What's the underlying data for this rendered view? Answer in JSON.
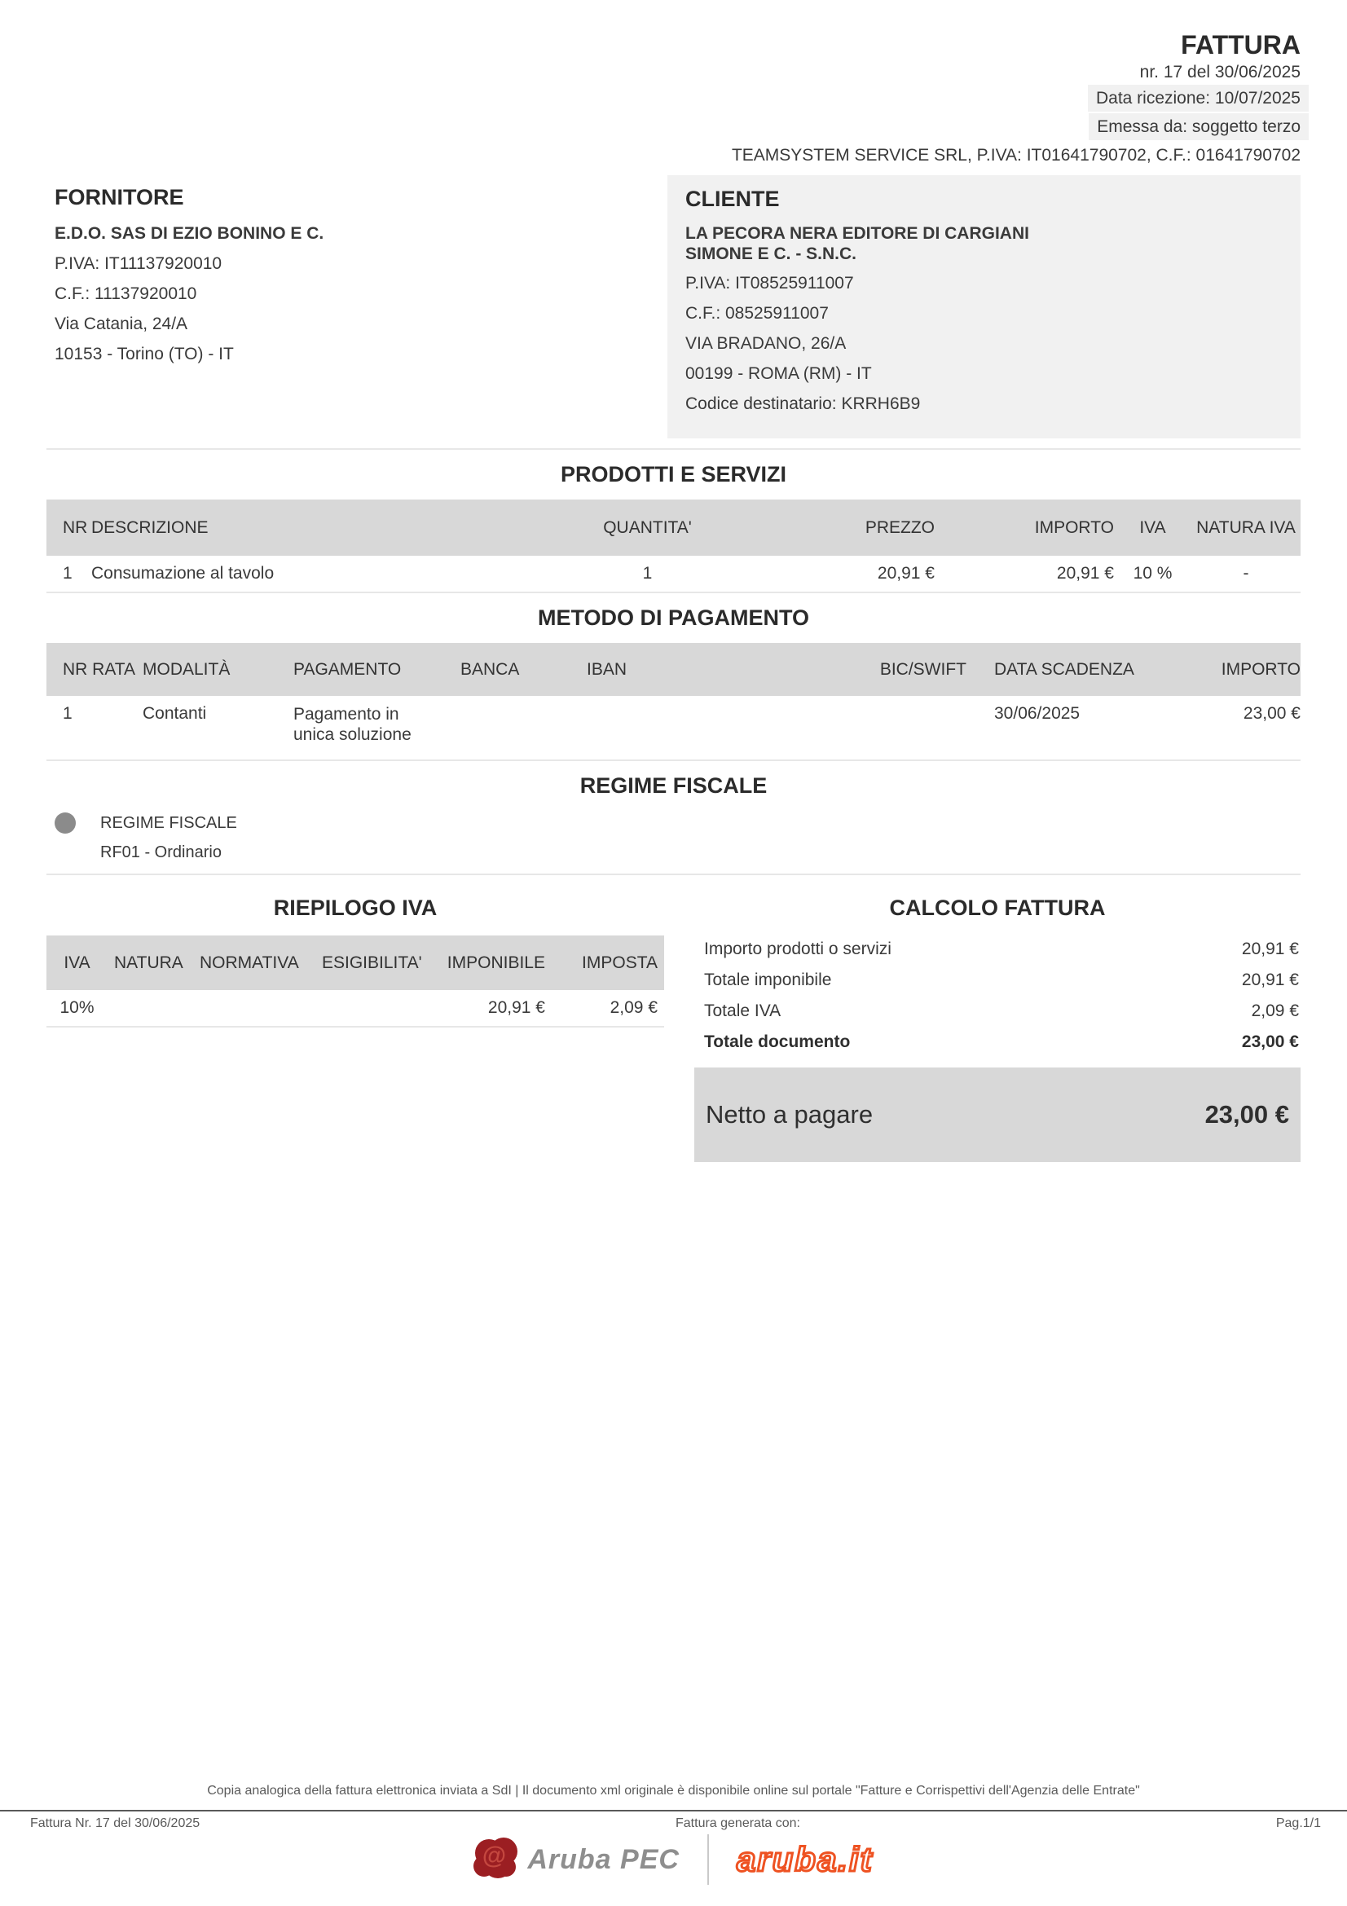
{
  "doc": {
    "title": "FATTURA",
    "number_line": "nr. 17 del 30/06/2025",
    "reception_line": "Data ricezione: 10/07/2025",
    "issued_line": "Emessa da: soggetto terzo",
    "intermediary_line": "TEAMSYSTEM SERVICE SRL, P.IVA: IT01641790702, C.F.: 01641790702"
  },
  "fornitore": {
    "heading": "FORNITORE",
    "name": "E.D.O. SAS DI EZIO BONINO E C.",
    "piva": "P.IVA: IT11137920010",
    "cf": "C.F.: 11137920010",
    "address": "Via Catania, 24/A",
    "city": "10153 - Torino (TO) - IT"
  },
  "cliente": {
    "heading": "CLIENTE",
    "name": "LA PECORA NERA EDITORE DI CARGIANI SIMONE E C. - S.N.C.",
    "piva": "P.IVA: IT08525911007",
    "cf": "C.F.: 08525911007",
    "address": "VIA BRADANO, 26/A",
    "city": "00199 - ROMA (RM) - IT",
    "codice_destinatario": "Codice destinatario: KRRH6B9"
  },
  "products": {
    "heading": "PRODOTTI E SERVIZI",
    "headers": {
      "nr": "NR",
      "descrizione": "DESCRIZIONE",
      "quantita": "QUANTITA'",
      "prezzo": "PREZZO",
      "importo": "IMPORTO",
      "iva": "IVA",
      "natura": "NATURA IVA"
    },
    "rows": [
      {
        "nr": "1",
        "descrizione": "Consumazione al tavolo",
        "quantita": "1",
        "prezzo": "20,91 €",
        "importo": "20,91 €",
        "iva": "10 %",
        "natura": "-"
      }
    ]
  },
  "payment": {
    "heading": "METODO DI PAGAMENTO",
    "headers": {
      "nr_rata": "NR RATA",
      "modalita": "MODALITÀ",
      "pagamento": "PAGAMENTO",
      "banca": "BANCA",
      "iban": "IBAN",
      "bic": "BIC/SWIFT",
      "data_scadenza": "DATA SCADENZA",
      "importo": "IMPORTO"
    },
    "rows": [
      {
        "nr_rata": "1",
        "modalita": "Contanti",
        "pagamento": "Pagamento in unica soluzione",
        "banca": "",
        "iban": "",
        "bic": "",
        "data_scadenza": "30/06/2025",
        "importo": "23,00 €"
      }
    ]
  },
  "regime": {
    "heading": "REGIME FISCALE",
    "label": "REGIME FISCALE",
    "value": "RF01 - Ordinario"
  },
  "iva_summary": {
    "heading": "RIEPILOGO IVA",
    "headers": {
      "iva": "IVA",
      "natura": "NATURA",
      "normativa": "NORMATIVA",
      "esigibilita": "ESIGIBILITA'",
      "imponibile": "IMPONIBILE",
      "imposta": "IMPOSTA"
    },
    "rows": [
      {
        "iva": "10%",
        "natura": "",
        "normativa": "",
        "esigibilita": "",
        "imponibile": "20,91 €",
        "imposta": "2,09 €"
      }
    ]
  },
  "calc": {
    "heading": "CALCOLO FATTURA",
    "rows": [
      {
        "label": "Importo prodotti o servizi",
        "value": "20,91 €"
      },
      {
        "label": "Totale imponibile",
        "value": "20,91 €"
      },
      {
        "label": "Totale IVA",
        "value": "2,09 €"
      },
      {
        "label": "Totale documento",
        "value": "23,00 €"
      }
    ],
    "netto_label": "Netto a pagare",
    "netto_value": "23,00 €"
  },
  "footer": {
    "note": "Copia analogica della fattura elettronica inviata a SdI | Il documento xml originale è disponibile online sul portale \"Fatture e Corrispettivi dell'Agenzia delle Entrate\"",
    "left": "Fattura Nr. 17 del 30/06/2025",
    "center": "Fattura generata con:",
    "right": "Pag.1/1",
    "logo_arubapec": "Aruba PEC",
    "logo_arubapec_at": "@",
    "logo_arubait": "aruba.it"
  },
  "colors": {
    "table_header_bg": "#d8d8d8",
    "panel_bg": "#f1f1f1",
    "netto_bg": "#d8d8d8",
    "rose_red": "#9b1e22",
    "aruba_orange": "#ee5222",
    "text": "#3a3a3a"
  }
}
